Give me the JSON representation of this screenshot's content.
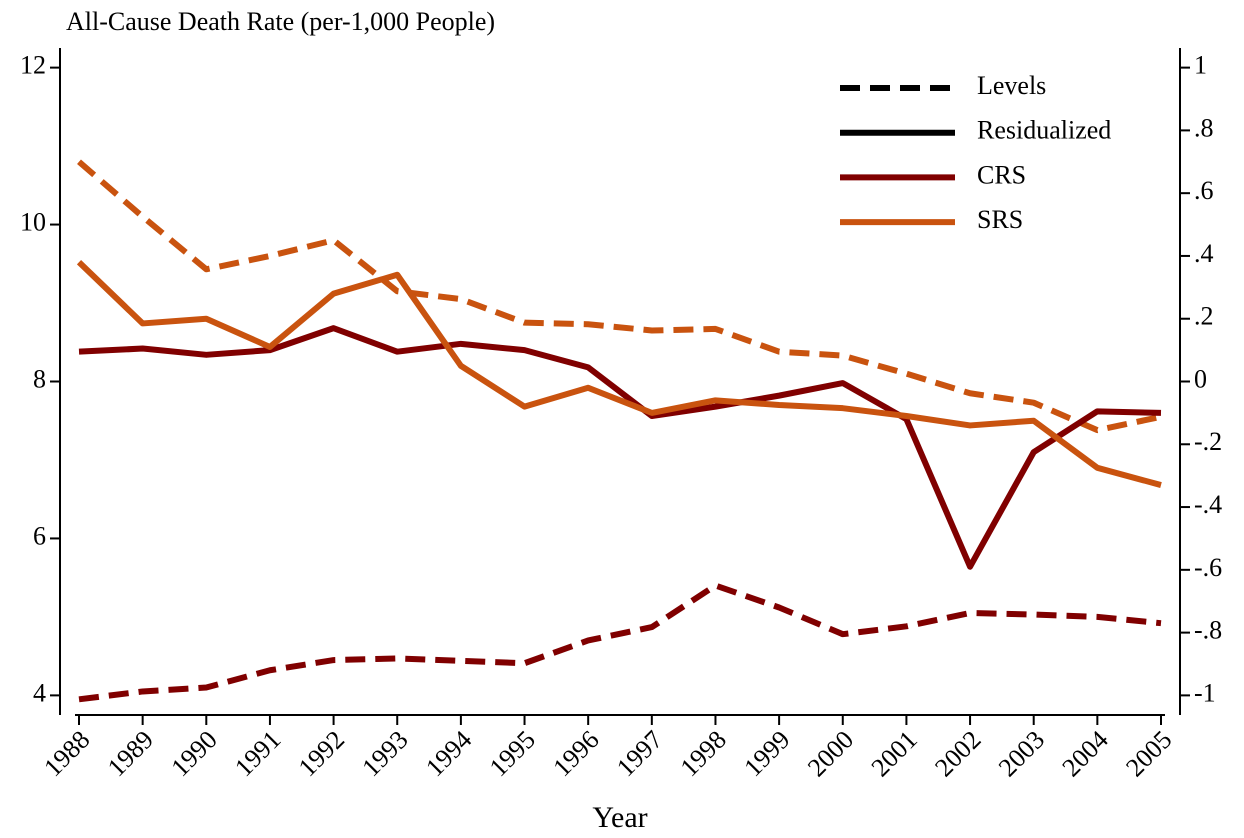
{
  "chart_data": {
    "type": "line",
    "title": "All-Cause Death Rate (per-1,000 People)",
    "xlabel": "Year",
    "categories": [
      "1988",
      "1989",
      "1990",
      "1991",
      "1992",
      "1993",
      "1994",
      "1995",
      "1996",
      "1997",
      "1998",
      "1999",
      "2000",
      "2001",
      "2002",
      "2003",
      "2004",
      "2005"
    ],
    "ylim": [
      3.75,
      12.25
    ],
    "yticks": [
      4,
      6,
      8,
      10,
      12
    ],
    "y2lim": [
      -1.0625,
      1.0625
    ],
    "y2ticks": [
      -1,
      {
        "value": -0.8,
        "label": "-.8"
      },
      {
        "value": -0.6,
        "label": "-.6"
      },
      {
        "value": -0.4,
        "label": "-.4"
      },
      {
        "value": -0.2,
        "label": "-.2"
      },
      0,
      {
        "value": 0.2,
        "label": ".2"
      },
      {
        "value": 0.4,
        "label": ".4"
      },
      {
        "value": 0.6,
        "label": ".6"
      },
      {
        "value": 0.8,
        "label": ".8"
      },
      1
    ],
    "legend_position": "upper right",
    "legend": [
      {
        "label": "Levels",
        "color": "#000000",
        "dashed": true
      },
      {
        "label": "Residualized",
        "color": "#000000",
        "dashed": false
      },
      {
        "label": "CRS",
        "color": "#800000",
        "dashed": false
      },
      {
        "label": "SRS",
        "color": "#c9530f",
        "dashed": false
      }
    ],
    "series": [
      {
        "color": "#800000",
        "dashed": true,
        "axis": "y",
        "values": [
          3.95,
          4.05,
          4.1,
          4.32,
          4.45,
          4.47,
          4.44,
          4.41,
          4.7,
          4.87,
          5.4,
          5.12,
          4.78,
          4.88,
          5.05,
          5.03,
          5.0,
          4.92
        ]
      },
      {
        "color": "#c9530f",
        "dashed": true,
        "axis": "y",
        "values": [
          10.8,
          10.1,
          9.43,
          9.6,
          9.8,
          9.15,
          9.05,
          8.75,
          8.73,
          8.65,
          8.67,
          8.38,
          8.33,
          8.1,
          7.85,
          7.73,
          7.38,
          7.55
        ]
      },
      {
        "color": "#800000",
        "dashed": false,
        "axis": "y2",
        "values": [
          0.095,
          0.105,
          0.085,
          0.1,
          0.17,
          0.095,
          0.12,
          0.1,
          0.045,
          -0.11,
          -0.08,
          -0.045,
          -0.005,
          -0.12,
          -0.59,
          -0.225,
          -0.095,
          -0.1
        ]
      },
      {
        "color": "#c9530f",
        "dashed": false,
        "axis": "y2",
        "values": [
          0.38,
          0.185,
          0.2,
          0.11,
          0.28,
          0.34,
          0.05,
          -0.08,
          -0.02,
          -0.1,
          -0.06,
          -0.075,
          -0.085,
          -0.11,
          -0.14,
          -0.125,
          -0.275,
          -0.33
        ]
      }
    ]
  }
}
